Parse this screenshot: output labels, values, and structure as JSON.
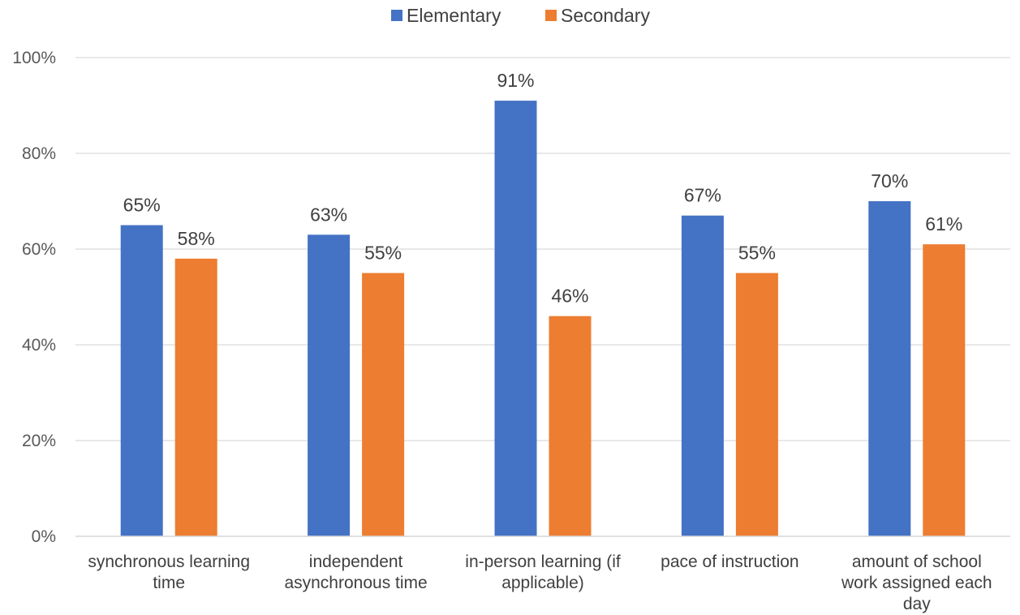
{
  "chart_data": {
    "type": "bar",
    "title": "",
    "xlabel": "",
    "ylabel": "",
    "categories": [
      [
        "synchronous learning",
        "time"
      ],
      [
        "independent",
        "asynchronous time"
      ],
      [
        "in-person learning (if",
        "applicable)"
      ],
      [
        "pace of instruction"
      ],
      [
        "amount of school",
        "work assigned each",
        "day"
      ]
    ],
    "series": [
      {
        "name": "Elementary",
        "color": "#4472C4",
        "values": [
          65,
          63,
          91,
          67,
          70
        ],
        "labels": [
          "65%",
          "63%",
          "91%",
          "67%",
          "70%"
        ]
      },
      {
        "name": "Secondary",
        "color": "#ED7D31",
        "values": [
          58,
          55,
          46,
          55,
          61
        ],
        "labels": [
          "58%",
          "55%",
          "46%",
          "55%",
          "61%"
        ]
      }
    ],
    "ylim": [
      0,
      100
    ],
    "yticks": [
      0,
      20,
      40,
      60,
      80,
      100
    ],
    "ytick_labels": [
      "0%",
      "20%",
      "40%",
      "60%",
      "80%",
      "100%"
    ],
    "grid": true,
    "legend_position": "top-center",
    "gridline_color": "#D9D9D9"
  }
}
